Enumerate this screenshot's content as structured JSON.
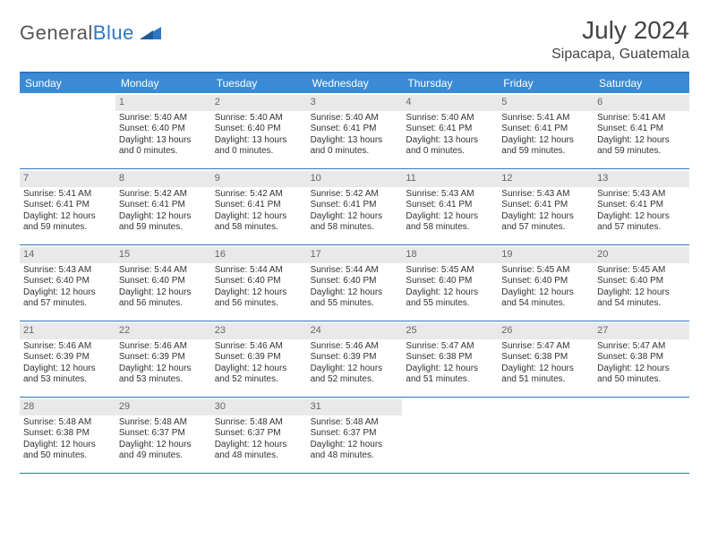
{
  "logo": {
    "part1": "General",
    "part2": "Blue"
  },
  "title": "July 2024",
  "location": "Sipacapa, Guatemala",
  "dayNames": [
    "Sunday",
    "Monday",
    "Tuesday",
    "Wednesday",
    "Thursday",
    "Friday",
    "Saturday"
  ],
  "colors": {
    "headerBlue": "#3b8bd4",
    "borderBlue": "#2e78c2",
    "dayBg": "#e9e9e9"
  },
  "weeks": [
    [
      {
        "n": "",
        "empty": true
      },
      {
        "n": "1",
        "sunrise": "5:40 AM",
        "sunset": "6:40 PM",
        "daylight": "13 hours and 0 minutes."
      },
      {
        "n": "2",
        "sunrise": "5:40 AM",
        "sunset": "6:40 PM",
        "daylight": "13 hours and 0 minutes."
      },
      {
        "n": "3",
        "sunrise": "5:40 AM",
        "sunset": "6:41 PM",
        "daylight": "13 hours and 0 minutes."
      },
      {
        "n": "4",
        "sunrise": "5:40 AM",
        "sunset": "6:41 PM",
        "daylight": "13 hours and 0 minutes."
      },
      {
        "n": "5",
        "sunrise": "5:41 AM",
        "sunset": "6:41 PM",
        "daylight": "12 hours and 59 minutes."
      },
      {
        "n": "6",
        "sunrise": "5:41 AM",
        "sunset": "6:41 PM",
        "daylight": "12 hours and 59 minutes."
      }
    ],
    [
      {
        "n": "7",
        "sunrise": "5:41 AM",
        "sunset": "6:41 PM",
        "daylight": "12 hours and 59 minutes."
      },
      {
        "n": "8",
        "sunrise": "5:42 AM",
        "sunset": "6:41 PM",
        "daylight": "12 hours and 59 minutes."
      },
      {
        "n": "9",
        "sunrise": "5:42 AM",
        "sunset": "6:41 PM",
        "daylight": "12 hours and 58 minutes."
      },
      {
        "n": "10",
        "sunrise": "5:42 AM",
        "sunset": "6:41 PM",
        "daylight": "12 hours and 58 minutes."
      },
      {
        "n": "11",
        "sunrise": "5:43 AM",
        "sunset": "6:41 PM",
        "daylight": "12 hours and 58 minutes."
      },
      {
        "n": "12",
        "sunrise": "5:43 AM",
        "sunset": "6:41 PM",
        "daylight": "12 hours and 57 minutes."
      },
      {
        "n": "13",
        "sunrise": "5:43 AM",
        "sunset": "6:41 PM",
        "daylight": "12 hours and 57 minutes."
      }
    ],
    [
      {
        "n": "14",
        "sunrise": "5:43 AM",
        "sunset": "6:40 PM",
        "daylight": "12 hours and 57 minutes."
      },
      {
        "n": "15",
        "sunrise": "5:44 AM",
        "sunset": "6:40 PM",
        "daylight": "12 hours and 56 minutes."
      },
      {
        "n": "16",
        "sunrise": "5:44 AM",
        "sunset": "6:40 PM",
        "daylight": "12 hours and 56 minutes."
      },
      {
        "n": "17",
        "sunrise": "5:44 AM",
        "sunset": "6:40 PM",
        "daylight": "12 hours and 55 minutes."
      },
      {
        "n": "18",
        "sunrise": "5:45 AM",
        "sunset": "6:40 PM",
        "daylight": "12 hours and 55 minutes."
      },
      {
        "n": "19",
        "sunrise": "5:45 AM",
        "sunset": "6:40 PM",
        "daylight": "12 hours and 54 minutes."
      },
      {
        "n": "20",
        "sunrise": "5:45 AM",
        "sunset": "6:40 PM",
        "daylight": "12 hours and 54 minutes."
      }
    ],
    [
      {
        "n": "21",
        "sunrise": "5:46 AM",
        "sunset": "6:39 PM",
        "daylight": "12 hours and 53 minutes."
      },
      {
        "n": "22",
        "sunrise": "5:46 AM",
        "sunset": "6:39 PM",
        "daylight": "12 hours and 53 minutes."
      },
      {
        "n": "23",
        "sunrise": "5:46 AM",
        "sunset": "6:39 PM",
        "daylight": "12 hours and 52 minutes."
      },
      {
        "n": "24",
        "sunrise": "5:46 AM",
        "sunset": "6:39 PM",
        "daylight": "12 hours and 52 minutes."
      },
      {
        "n": "25",
        "sunrise": "5:47 AM",
        "sunset": "6:38 PM",
        "daylight": "12 hours and 51 minutes."
      },
      {
        "n": "26",
        "sunrise": "5:47 AM",
        "sunset": "6:38 PM",
        "daylight": "12 hours and 51 minutes."
      },
      {
        "n": "27",
        "sunrise": "5:47 AM",
        "sunset": "6:38 PM",
        "daylight": "12 hours and 50 minutes."
      }
    ],
    [
      {
        "n": "28",
        "sunrise": "5:48 AM",
        "sunset": "6:38 PM",
        "daylight": "12 hours and 50 minutes."
      },
      {
        "n": "29",
        "sunrise": "5:48 AM",
        "sunset": "6:37 PM",
        "daylight": "12 hours and 49 minutes."
      },
      {
        "n": "30",
        "sunrise": "5:48 AM",
        "sunset": "6:37 PM",
        "daylight": "12 hours and 48 minutes."
      },
      {
        "n": "31",
        "sunrise": "5:48 AM",
        "sunset": "6:37 PM",
        "daylight": "12 hours and 48 minutes."
      },
      {
        "n": "",
        "empty": true
      },
      {
        "n": "",
        "empty": true
      },
      {
        "n": "",
        "empty": true
      }
    ]
  ],
  "labels": {
    "sunrise": "Sunrise: ",
    "sunset": "Sunset: ",
    "daylight": "Daylight: "
  }
}
